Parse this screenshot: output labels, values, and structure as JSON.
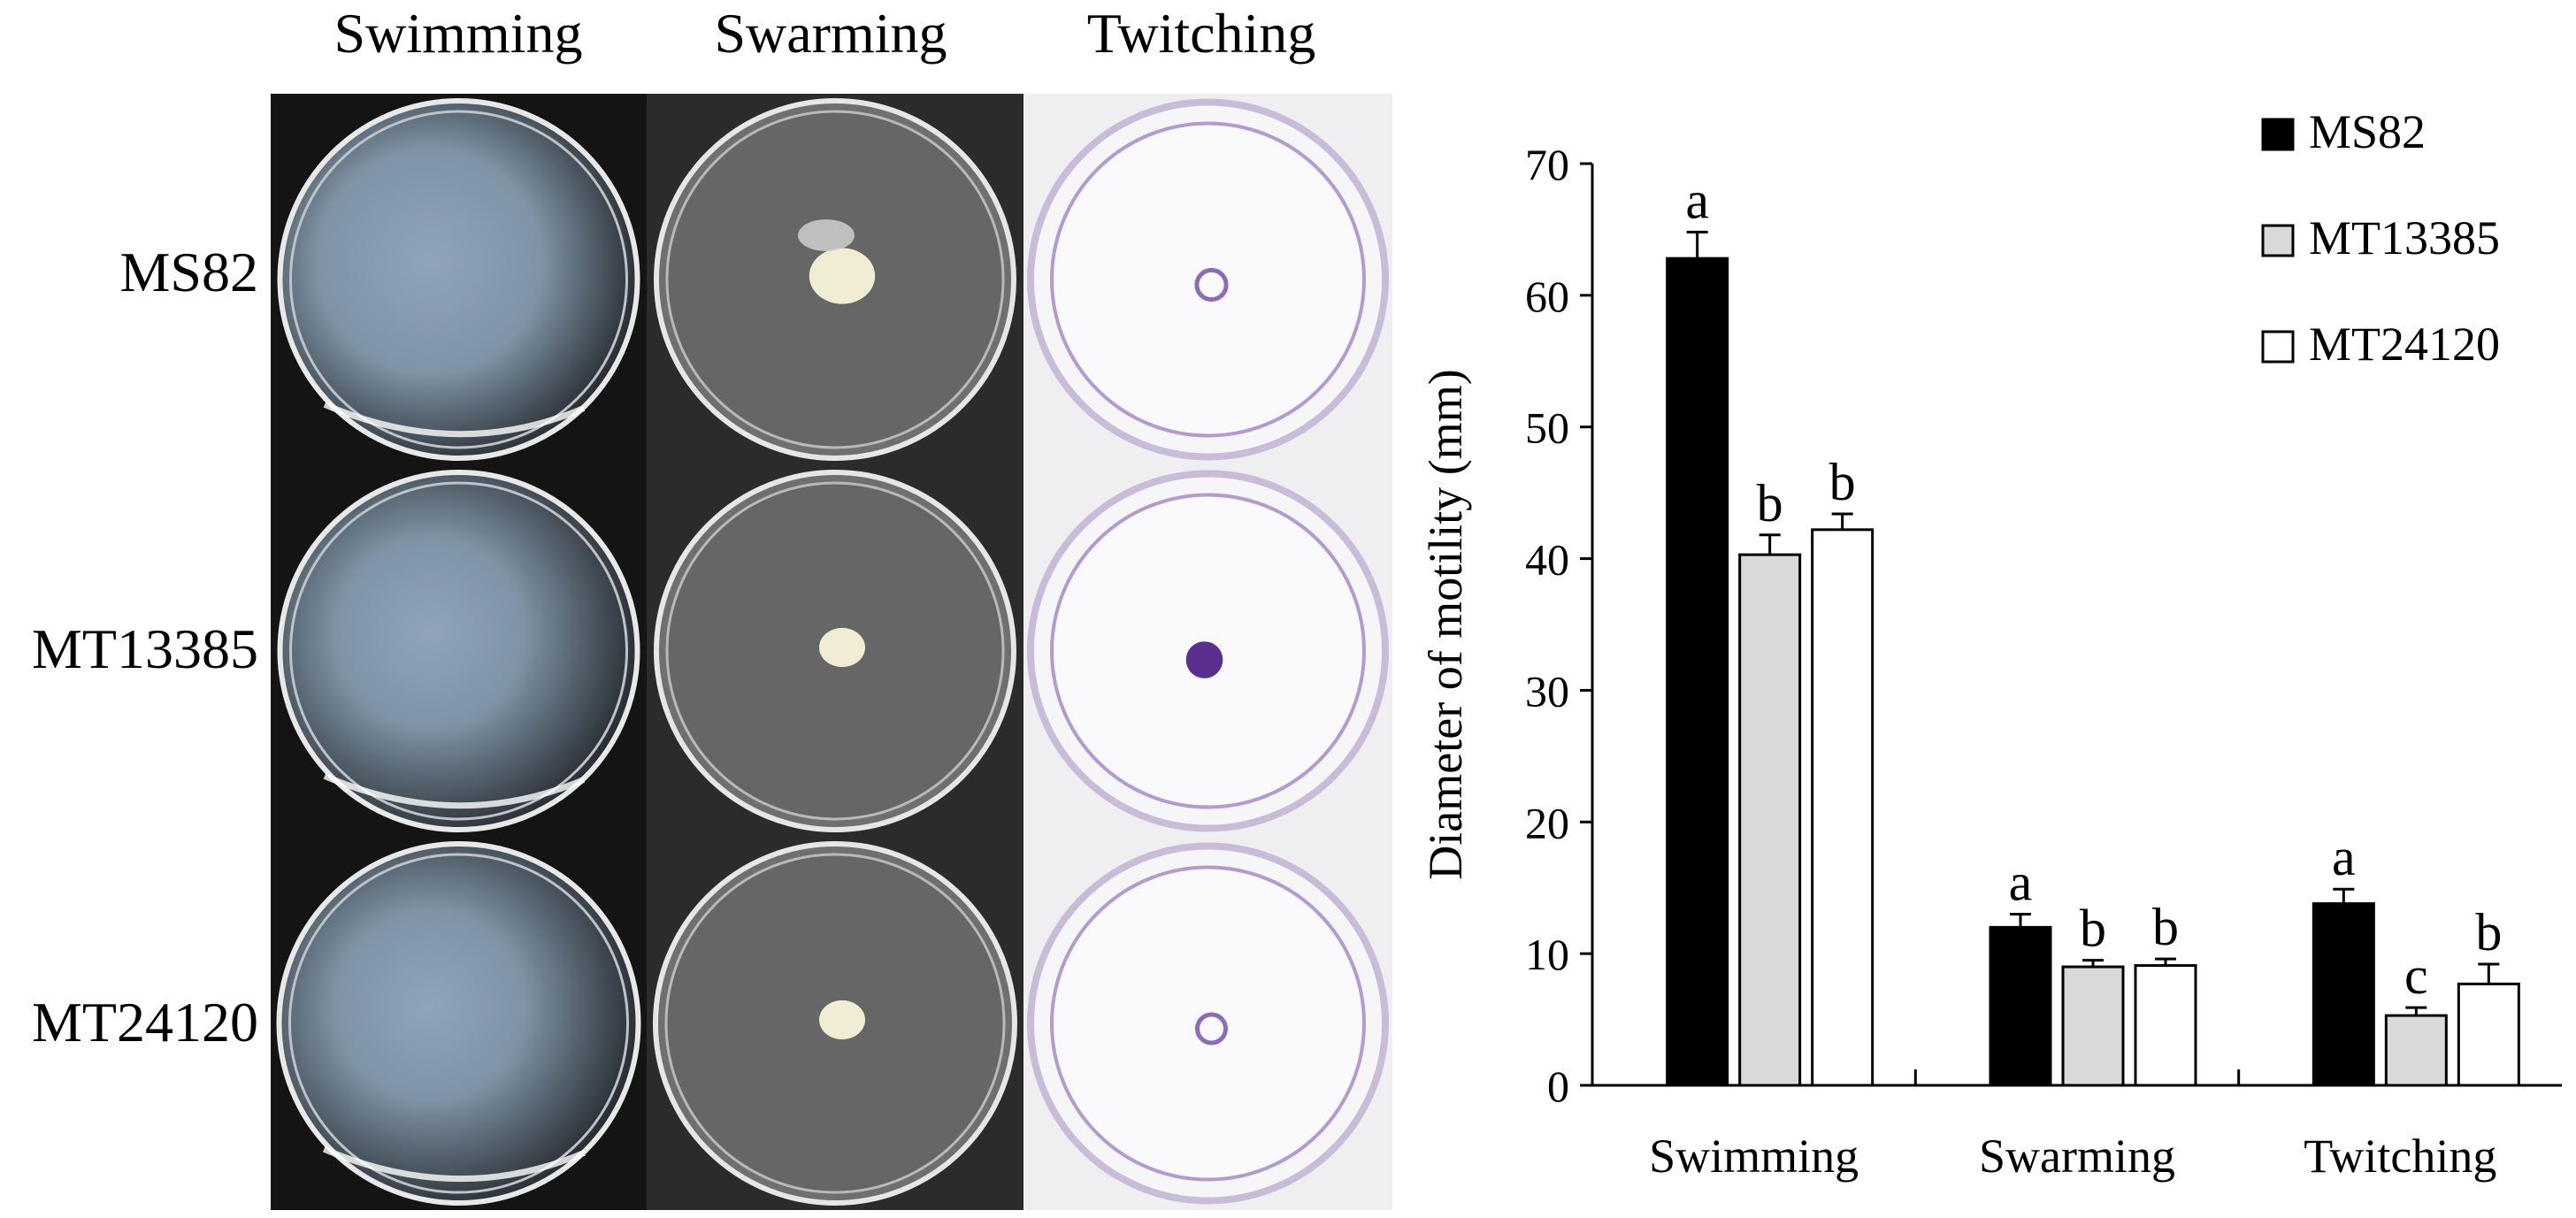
{
  "photo_grid": {
    "columns": [
      "Swimming",
      "Swarming",
      "Twitching"
    ],
    "rows": [
      "MS82",
      "MT13385",
      "MT24120"
    ],
    "panels": [
      {
        "assay": "Swimming",
        "strain": "MS82",
        "kind": "swim",
        "level": 0.95
      },
      {
        "assay": "Swarming",
        "strain": "MS82",
        "kind": "swarm",
        "level": 0.9
      },
      {
        "assay": "Twitching",
        "strain": "MS82",
        "kind": "twitch",
        "level": 0.55
      },
      {
        "assay": "Swimming",
        "strain": "MT13385",
        "kind": "swim",
        "level": 0.8
      },
      {
        "assay": "Swarming",
        "strain": "MT13385",
        "kind": "swarm",
        "level": 0.5
      },
      {
        "assay": "Twitching",
        "strain": "MT13385",
        "kind": "twitch",
        "level": 0.9
      },
      {
        "assay": "Swimming",
        "strain": "MT24120",
        "kind": "swim",
        "level": 0.8
      },
      {
        "assay": "Swarming",
        "strain": "MT24120",
        "kind": "swarm",
        "level": 0.5
      },
      {
        "assay": "Twitching",
        "strain": "MT24120",
        "kind": "twitch",
        "level": 0.5
      }
    ]
  },
  "chart_data": {
    "type": "bar",
    "categories": [
      "Swimming",
      "Swarming",
      "Twitching"
    ],
    "series": [
      {
        "name": "MS82",
        "values": [
          62.8,
          12.0,
          13.8
        ],
        "errors": [
          2.0,
          1.0,
          1.1
        ],
        "letters": [
          "a",
          "a",
          "a"
        ],
        "color": "#000000"
      },
      {
        "name": "MT13385",
        "values": [
          40.3,
          9.0,
          5.3
        ],
        "errors": [
          1.5,
          0.5,
          0.6
        ],
        "letters": [
          "b",
          "b",
          "c"
        ],
        "color": "#d9d9d9"
      },
      {
        "name": "MT24120",
        "values": [
          42.2,
          9.1,
          7.7
        ],
        "errors": [
          1.2,
          0.5,
          1.5
        ],
        "letters": [
          "b",
          "b",
          "b"
        ],
        "color": "#ffffff"
      }
    ],
    "ylabel": "Diameter of motility (mm)",
    "ylim": [
      0,
      70
    ],
    "yticks": [
      0,
      10,
      20,
      30,
      40,
      50,
      60,
      70
    ],
    "legend_position": "top-right",
    "grid": false
  }
}
